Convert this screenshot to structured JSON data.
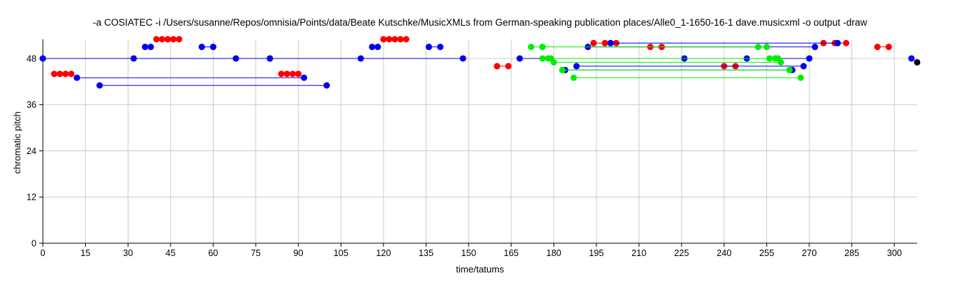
{
  "chart_data": {
    "type": "scatter",
    "title": "-a COSIATEC -i /Users/susanne/Repos/omnisia/Points/data/Beate Kutschke/MusicXMLs from German-speaking publication places/Alle0_1-1650-16-1 dave.musicxml -o output -draw",
    "xlabel": "time/tatums",
    "ylabel": "chromatic pitch",
    "xlim": [
      0,
      308
    ],
    "ylim": [
      0,
      53
    ],
    "x_ticks": [
      0,
      15,
      30,
      45,
      60,
      75,
      90,
      105,
      120,
      135,
      150,
      165,
      180,
      195,
      210,
      225,
      240,
      255,
      270,
      285,
      300
    ],
    "y_ticks": [
      0,
      12,
      24,
      36,
      48
    ],
    "grid": true,
    "colors": {
      "red": "#ff0000",
      "blue": "#0000ee",
      "green": "#00ee00",
      "black": "#000000"
    },
    "patterns": [
      {
        "color": "red",
        "y": 53,
        "x": [
          40,
          42,
          44,
          46,
          48
        ]
      },
      {
        "color": "red",
        "y": 53,
        "x": [
          120,
          122,
          124,
          126,
          128
        ]
      },
      {
        "color": "red",
        "y": 44,
        "x": [
          4,
          6,
          8,
          10
        ]
      },
      {
        "color": "red",
        "y": 44,
        "x": [
          84,
          86,
          88,
          90
        ]
      },
      {
        "color": "blue",
        "y": 51,
        "x": [
          36,
          38
        ]
      },
      {
        "color": "blue",
        "y": 51,
        "x": [
          116,
          118
        ]
      },
      {
        "color": "blue",
        "y": 51,
        "x": [
          56,
          60
        ]
      },
      {
        "color": "blue",
        "y": 51,
        "x": [
          136,
          140
        ]
      },
      {
        "color": "blue",
        "y": 48,
        "x": [
          0,
          32,
          68,
          80
        ]
      },
      {
        "color": "blue",
        "y": 48,
        "x": [
          80,
          112,
          148
        ]
      },
      {
        "color": "blue",
        "y": 43,
        "x": [
          12,
          92
        ]
      },
      {
        "color": "blue",
        "y": 41,
        "x": [
          20,
          100
        ]
      },
      {
        "color": "red",
        "y": 46,
        "x": [
          160,
          164
        ]
      },
      {
        "color": "red",
        "y": 46,
        "x": [
          240,
          244
        ]
      },
      {
        "color": "blue",
        "y": 48,
        "x": [
          168,
          226,
          248,
          270
        ]
      },
      {
        "color": "blue",
        "y": 48,
        "x": [
          306
        ]
      },
      {
        "color": "blue",
        "y": 46,
        "x": [
          188,
          268
        ]
      },
      {
        "color": "blue",
        "y": 45,
        "x": [
          184,
          264
        ]
      },
      {
        "color": "blue",
        "y": 51,
        "x": [
          192,
          272
        ]
      },
      {
        "color": "red",
        "y": 52,
        "x": [
          194,
          198,
          202
        ]
      },
      {
        "color": "red",
        "y": 52,
        "x": [
          275,
          279,
          283
        ]
      },
      {
        "color": "red",
        "y": 51,
        "x": [
          214,
          218
        ]
      },
      {
        "color": "red",
        "y": 51,
        "x": [
          294,
          298
        ]
      },
      {
        "color": "blue",
        "y": 52,
        "x": [
          200,
          280
        ]
      },
      {
        "color": "green",
        "y": 51,
        "x": [
          172,
          176,
          252,
          255
        ]
      },
      {
        "color": "green",
        "y": 48,
        "x": [
          176,
          179,
          256,
          259
        ]
      },
      {
        "color": "green",
        "y": 47,
        "x": [
          180,
          260
        ]
      },
      {
        "color": "green",
        "y": 45,
        "x": [
          183,
          263
        ]
      },
      {
        "color": "green",
        "y": 43,
        "x": [
          187,
          267
        ]
      },
      {
        "color": "green",
        "y": 48,
        "x": [
          178,
          258
        ]
      },
      {
        "color": "black",
        "y": 47,
        "x": [
          308
        ]
      }
    ]
  }
}
